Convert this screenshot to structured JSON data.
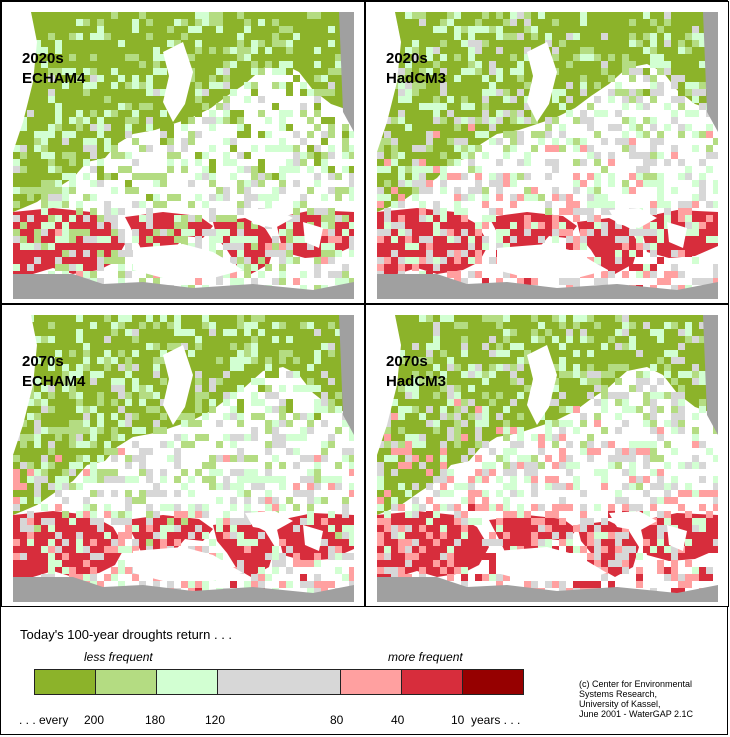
{
  "panels": [
    {
      "period": "2020s",
      "model": "ECHAM4",
      "dry": 0.42
    },
    {
      "period": "2020s",
      "model": "HadCM3",
      "dry": 0.62
    },
    {
      "period": "2070s",
      "model": "ECHAM4",
      "dry": 0.56
    },
    {
      "period": "2070s",
      "model": "HadCM3",
      "dry": 0.68
    }
  ],
  "legend": {
    "title": "Today's 100-year droughts return . . .",
    "less_frequent": "less frequent",
    "more_frequent": "more frequent",
    "classes": [
      {
        "color": "#8cb32a"
      },
      {
        "color": "#b4dc82"
      },
      {
        "color": "#d2ffd2"
      },
      {
        "color": "#d7d7d7"
      },
      {
        "color": "#ffa0a0"
      },
      {
        "color": "#d72d3c"
      },
      {
        "color": "#960000"
      }
    ],
    "ticks": {
      "start": ". . . every",
      "t200": "200",
      "t180": "180",
      "t120": "120",
      "t80": "80",
      "t40": "40",
      "t10": "10",
      "end": "years . . ."
    }
  },
  "credit": {
    "line1": "(c) Center for Environmental",
    "line2": "Systems Research,",
    "line3": "University of Kassel,",
    "line4": "June 2001 - WaterGAP 2.1C"
  },
  "colors": {
    "sea": "#ffffff",
    "nonmodel_land": "#a0a0a0",
    "background": "#dcdcdc"
  }
}
